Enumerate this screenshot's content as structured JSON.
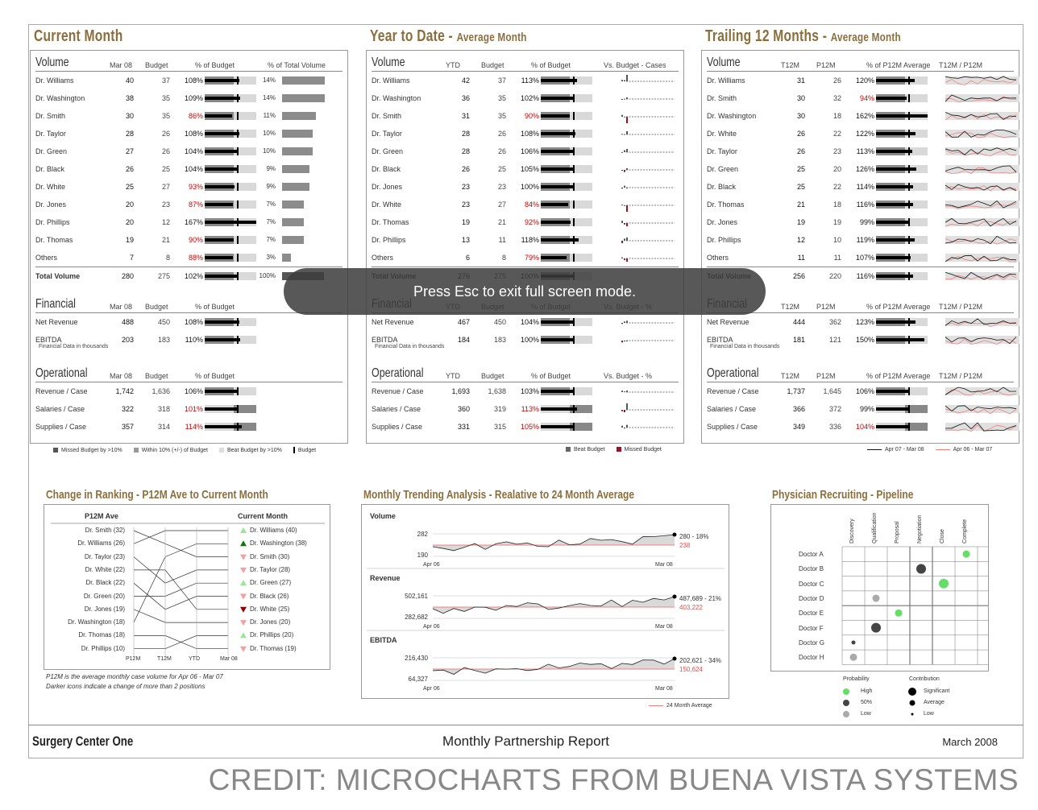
{
  "panels": [
    {
      "title": "Current Month",
      "subtitle": "",
      "volume": {
        "label": "Volume",
        "cols": [
          "Mar 08",
          "Budget",
          "% of Budget",
          "% of Total Volume"
        ],
        "rows": [
          {
            "name": "Dr. Williams",
            "a": "40",
            "b": "37",
            "pct": "108%",
            "p": 108,
            "d": 14,
            "dl": "14%"
          },
          {
            "name": "Dr. Washington",
            "a": "38",
            "b": "35",
            "pct": "109%",
            "p": 109,
            "d": 14,
            "dl": "14%"
          },
          {
            "name": "Dr. Smith",
            "a": "30",
            "b": "35",
            "pct": "86%",
            "p": 86,
            "d": 11,
            "dl": "11%"
          },
          {
            "name": "Dr. Taylor",
            "a": "28",
            "b": "26",
            "pct": "108%",
            "p": 108,
            "d": 10,
            "dl": "10%"
          },
          {
            "name": "Dr. Green",
            "a": "27",
            "b": "26",
            "pct": "104%",
            "p": 104,
            "d": 10,
            "dl": "10%"
          },
          {
            "name": "Dr. Black",
            "a": "26",
            "b": "25",
            "pct": "104%",
            "p": 104,
            "d": 9,
            "dl": "9%"
          },
          {
            "name": "Dr. White",
            "a": "25",
            "b": "27",
            "pct": "93%",
            "p": 93,
            "d": 9,
            "dl": "9%"
          },
          {
            "name": "Dr. Jones",
            "a": "20",
            "b": "23",
            "pct": "87%",
            "p": 87,
            "d": 7,
            "dl": "7%"
          },
          {
            "name": "Dr. Phillips",
            "a": "20",
            "b": "12",
            "pct": "167%",
            "p": 167,
            "d": 7,
            "dl": "7%"
          },
          {
            "name": "Dr. Thomas",
            "a": "19",
            "b": "21",
            "pct": "90%",
            "p": 90,
            "d": 7,
            "dl": "7%"
          },
          {
            "name": "Others",
            "a": "7",
            "b": "8",
            "pct": "88%",
            "p": 88,
            "d": 3,
            "dl": "3%"
          }
        ],
        "total": {
          "name": "Total Volume",
          "a": "280",
          "b": "275",
          "pct": "102%",
          "p": 102,
          "d": 100,
          "dl": "100%"
        }
      },
      "financial": {
        "label": "Financial",
        "cols": [
          "Mar 08",
          "Budget",
          "% of Budget",
          ""
        ],
        "rows": [
          {
            "name": "Net Revenue",
            "a": "488",
            "b": "450",
            "pct": "108%",
            "p": 108
          },
          {
            "name": "EBITDA",
            "a": "203",
            "b": "183",
            "pct": "110%",
            "p": 110
          }
        ],
        "note": "Financial Data in thousands"
      },
      "operational": {
        "label": "Operational",
        "cols": [
          "Mar 08",
          "Budget",
          "% of Budget",
          ""
        ],
        "rows": [
          {
            "name": "Revenue / Case",
            "a": "1,742",
            "b": "1,636",
            "pct": "106%",
            "p": 106
          },
          {
            "name": "Salaries / Case",
            "a": "322",
            "b": "318",
            "pct": "101%",
            "p": 101,
            "inv": true
          },
          {
            "name": "Supplies / Case",
            "a": "357",
            "b": "314",
            "pct": "114%",
            "p": 114,
            "inv": true
          }
        ]
      }
    },
    {
      "title": "Year to Date",
      "subtitle": "Average Month",
      "volume": {
        "label": "Volume",
        "cols": [
          "YTD",
          "Budget",
          "% of Budget",
          "Vs. Budget - Cases"
        ],
        "rows": [
          {
            "name": "Dr. Williams",
            "a": "42",
            "b": "37",
            "pct": "113%",
            "p": 113,
            "d": 5
          },
          {
            "name": "Dr. Washington",
            "a": "36",
            "b": "35",
            "pct": "102%",
            "p": 102,
            "d": 1
          },
          {
            "name": "Dr. Smith",
            "a": "31",
            "b": "35",
            "pct": "90%",
            "p": 90,
            "d": -4
          },
          {
            "name": "Dr. Taylor",
            "a": "28",
            "b": "26",
            "pct": "108%",
            "p": 108,
            "d": 2
          },
          {
            "name": "Dr. Green",
            "a": "28",
            "b": "26",
            "pct": "106%",
            "p": 106,
            "d": 2
          },
          {
            "name": "Dr. Black",
            "a": "26",
            "b": "25",
            "pct": "105%",
            "p": 105,
            "d": 1
          },
          {
            "name": "Dr. Jones",
            "a": "23",
            "b": "23",
            "pct": "100%",
            "p": 100,
            "d": 0
          },
          {
            "name": "Dr. White",
            "a": "23",
            "b": "27",
            "pct": "84%",
            "p": 84,
            "d": -4
          },
          {
            "name": "Dr. Thomas",
            "a": "19",
            "b": "21",
            "pct": "92%",
            "p": 92,
            "d": -2
          },
          {
            "name": "Dr. Phillips",
            "a": "13",
            "b": "11",
            "pct": "118%",
            "p": 118,
            "d": 2
          },
          {
            "name": "Others",
            "a": "6",
            "b": "8",
            "pct": "79%",
            "p": 79,
            "d": -2
          }
        ],
        "total": {
          "name": "Total Volume",
          "a": "276",
          "b": "275",
          "pct": "100%",
          "p": 100
        }
      },
      "financial": {
        "label": "Financial",
        "cols": [
          "YTD",
          "Budget",
          "% of Budget",
          "Vs. Budget - %"
        ],
        "rows": [
          {
            "name": "Net Revenue",
            "a": "467",
            "b": "450",
            "pct": "104%",
            "p": 104
          },
          {
            "name": "EBITDA",
            "a": "184",
            "b": "183",
            "pct": "100%",
            "p": 100
          }
        ],
        "note": "Financial Data in thousands"
      },
      "operational": {
        "label": "Operational",
        "cols": [
          "YTD",
          "Budget",
          "% of Budget",
          "Vs. Budget - %"
        ],
        "rows": [
          {
            "name": "Revenue / Case",
            "a": "1,693",
            "b": "1,638",
            "pct": "103%",
            "p": 103
          },
          {
            "name": "Salaries / Case",
            "a": "360",
            "b": "319",
            "pct": "113%",
            "p": 113,
            "inv": true
          },
          {
            "name": "Supplies / Case",
            "a": "331",
            "b": "315",
            "pct": "105%",
            "p": 105,
            "inv": true
          }
        ]
      }
    },
    {
      "title": "Trailing 12 Months",
      "subtitle": "Average Month",
      "volume": {
        "label": "Volume",
        "cols": [
          "T12M",
          "P12M",
          "% of P12M Average",
          "T12M / P12M"
        ],
        "rows": [
          {
            "name": "Dr. Williams",
            "a": "31",
            "b": "26",
            "pct": "120%",
            "p": 120
          },
          {
            "name": "Dr. Smith",
            "a": "30",
            "b": "32",
            "pct": "94%",
            "p": 94
          },
          {
            "name": "Dr. Washington",
            "a": "30",
            "b": "18",
            "pct": "162%",
            "p": 162
          },
          {
            "name": "Dr. White",
            "a": "26",
            "b": "22",
            "pct": "122%",
            "p": 122
          },
          {
            "name": "Dr. Taylor",
            "a": "26",
            "b": "23",
            "pct": "113%",
            "p": 113
          },
          {
            "name": "Dr. Green",
            "a": "25",
            "b": "20",
            "pct": "126%",
            "p": 126
          },
          {
            "name": "Dr. Black",
            "a": "25",
            "b": "22",
            "pct": "114%",
            "p": 114
          },
          {
            "name": "Dr. Thomas",
            "a": "21",
            "b": "18",
            "pct": "116%",
            "p": 116
          },
          {
            "name": "Dr. Jones",
            "a": "19",
            "b": "19",
            "pct": "99%",
            "p": 99
          },
          {
            "name": "Dr. Phillips",
            "a": "12",
            "b": "10",
            "pct": "119%",
            "p": 119
          },
          {
            "name": "Others",
            "a": "11",
            "b": "11",
            "pct": "107%",
            "p": 107
          }
        ],
        "total": {
          "name": "Total Volume",
          "a": "256",
          "b": "220",
          "pct": "116%",
          "p": 116
        }
      },
      "financial": {
        "label": "Financial",
        "cols": [
          "T12M",
          "P12M",
          "% of P12M Average",
          "T12M / P12M"
        ],
        "rows": [
          {
            "name": "Net Revenue",
            "a": "444",
            "b": "362",
            "pct": "123%",
            "p": 123
          },
          {
            "name": "EBITDA",
            "a": "181",
            "b": "121",
            "pct": "150%",
            "p": 150
          }
        ],
        "note": "Financial Data in thousands"
      },
      "operational": {
        "label": "Operational",
        "cols": [
          "T12M",
          "P12M",
          "% of P12M Average",
          "T12M / P12M"
        ],
        "rows": [
          {
            "name": "Revenue / Case",
            "a": "1,737",
            "b": "1,645",
            "pct": "106%",
            "p": 106
          },
          {
            "name": "Salaries / Case",
            "a": "366",
            "b": "372",
            "pct": "99%",
            "p": 99,
            "inv": true
          },
          {
            "name": "Supplies / Case",
            "a": "349",
            "b": "336",
            "pct": "104%",
            "p": 104,
            "inv": true
          }
        ]
      }
    }
  ],
  "legend1": [
    "Missed Budget by >10%",
    "Within 10% (+/-) of Budget",
    "Beat Budget by >10%",
    "Budget"
  ],
  "legend2": [
    "Beat Budget",
    "Missed Budget"
  ],
  "legend3": [
    "Apr 07 - Mar 08",
    "Apr 06 - Mar 07"
  ],
  "ranking": {
    "title": "Change in Ranking - P12M Ave to Current Month",
    "left_head": "P12M Ave",
    "right_head": "Current Month",
    "left": [
      "Dr. Smith (32)",
      "Dr. Williams (26)",
      "Dr. Taylor (23)",
      "Dr. White (22)",
      "Dr. Black (22)",
      "Dr. Green (20)",
      "Dr. Jones (19)",
      "Dr. Washington (18)",
      "Dr. Thomas (18)",
      "Dr. Phillips (10)"
    ],
    "right": [
      {
        "t": "Dr. Williams (40)",
        "m": "up"
      },
      {
        "t": "Dr. Washington (38)",
        "m": "UP"
      },
      {
        "t": "Dr. Smith (30)",
        "m": "down"
      },
      {
        "t": "Dr. Taylor (28)",
        "m": "down"
      },
      {
        "t": "Dr. Green (27)",
        "m": "up"
      },
      {
        "t": "Dr. Black (26)",
        "m": "down"
      },
      {
        "t": "Dr. White (25)",
        "m": "DOWN"
      },
      {
        "t": "Dr. Jones (20)",
        "m": "down"
      },
      {
        "t": "Dr. Phillips (20)",
        "m": "up"
      },
      {
        "t": "Dr. Thomas (19)",
        "m": "down"
      }
    ],
    "axis": [
      "P12M",
      "T12M",
      "YTD",
      "Mar 08"
    ],
    "notes": [
      "P12M is the average monthly case volume for Apr 06 - Mar 07",
      "Darker icons indicate a change of more than 2 positions"
    ]
  },
  "trend": {
    "title": "Monthly Trending Analysis - Realative to 24 Month Average",
    "charts": [
      {
        "label": "Volume",
        "ymax": "282",
        "ymin": "190",
        "end": "280 - 18%",
        "avg": "238",
        "x0": "Apr 06",
        "x1": "Mar 08"
      },
      {
        "label": "Revenue",
        "ymax": "502,161",
        "ymin": "282,682",
        "end": "487,689 - 21%",
        "avg": "403,222",
        "x0": "Apr 06",
        "x1": "Mar 08"
      },
      {
        "label": "EBITDA",
        "ymax": "216,430",
        "ymin": "64,327",
        "end": "202,621 - 34%",
        "avg": "150,624",
        "x0": "Apr 06",
        "x1": "Mar 08"
      }
    ],
    "legend": "24 Month Average"
  },
  "recruit": {
    "title": "Physician Recruiting - Pipeline",
    "stages": [
      "Discovery",
      "Qualification",
      "Proposal",
      "Negotiation",
      "Close",
      "Complete"
    ],
    "doctors": [
      "Doctor A",
      "Doctor B",
      "Doctor C",
      "Doctor D",
      "Doctor E",
      "Doctor F",
      "Doctor G",
      "Doctor H"
    ],
    "dots": [
      {
        "r": 0,
        "c": 5,
        "p": "high",
        "s": "avg"
      },
      {
        "r": 1,
        "c": 3,
        "p": "mid",
        "s": "sig"
      },
      {
        "r": 2,
        "c": 4,
        "p": "high",
        "s": "sig"
      },
      {
        "r": 3,
        "c": 1,
        "p": "low",
        "s": "avg"
      },
      {
        "r": 4,
        "c": 2,
        "p": "high",
        "s": "avg"
      },
      {
        "r": 5,
        "c": 1,
        "p": "mid",
        "s": "sig"
      },
      {
        "r": 6,
        "c": 0,
        "p": "mid",
        "s": "low"
      },
      {
        "r": 7,
        "c": 0,
        "p": "low",
        "s": "avg"
      }
    ],
    "prob_title": "Probability",
    "prob": [
      "High",
      "50%",
      "Low"
    ],
    "contrib_title": "Contribution",
    "contrib": [
      "Significant",
      "Average",
      "Low"
    ],
    "colors": {
      "high": "#66dd66",
      "mid": "#444444",
      "low": "#aaaaaa"
    }
  },
  "footer": {
    "left": "Surgery Center One",
    "center": "Monthly Partnership Report",
    "right": "March 2008"
  },
  "toast": "Press Esc to exit full screen mode.",
  "credit": "CREDIT: MICROCHARTS FROM BUENA VISTA SYSTEMS"
}
